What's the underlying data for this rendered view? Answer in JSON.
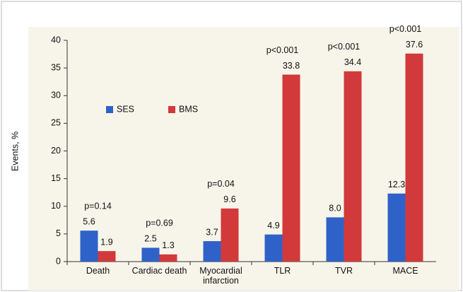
{
  "chart_data": {
    "type": "bar",
    "y_label": "Events, %",
    "categories": [
      "Death",
      "Cardiac death",
      "Myocardial infarction",
      "TLR",
      "TVR",
      "MACE"
    ],
    "series": [
      {
        "name": "SES",
        "color": "#2f62c8",
        "values": [
          5.6,
          2.5,
          3.7,
          4.9,
          8.0,
          12.3
        ],
        "value_labels": [
          "5.6",
          "2.5",
          "3.7",
          "4.9",
          "8.0",
          "12.3"
        ]
      },
      {
        "name": "BMS",
        "color": "#d2393b",
        "values": [
          1.9,
          1.3,
          9.6,
          33.8,
          34.4,
          37.6
        ],
        "value_labels": [
          "1.9",
          "1.3",
          "9.6",
          "33.8",
          "34.4",
          "37.6"
        ]
      }
    ],
    "annotations": [
      "p=0.14",
      "p=0.69",
      "p=0.04",
      "p<0.001",
      "p<0.001",
      "p<0.001"
    ],
    "ylim": [
      0,
      40
    ],
    "yticks": [
      0,
      5,
      10,
      15,
      20,
      25,
      30,
      35,
      40
    ],
    "legend": "upper left"
  }
}
